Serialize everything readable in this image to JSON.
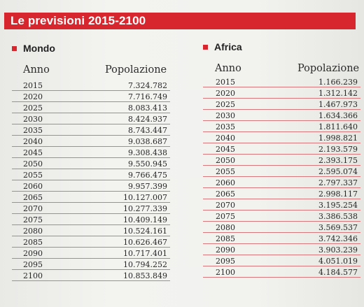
{
  "title": "Le previsioni 2015-2100",
  "mondo": {
    "name": "Mondo",
    "col_year": "Anno",
    "col_pop": "Popolazione",
    "rows": [
      {
        "year": "2015",
        "pop": "7.324.782"
      },
      {
        "year": "2020",
        "pop": "7.716.749"
      },
      {
        "year": "2025",
        "pop": "8.083.413"
      },
      {
        "year": "2030",
        "pop": "8.424.937"
      },
      {
        "year": "2035",
        "pop": "8.743.447"
      },
      {
        "year": "2040",
        "pop": "9.038.687"
      },
      {
        "year": "2045",
        "pop": "9.308.438"
      },
      {
        "year": "2050",
        "pop": "9.550.945"
      },
      {
        "year": "2055",
        "pop": "9.766.475"
      },
      {
        "year": "2060",
        "pop": "9.957.399"
      },
      {
        "year": "2065",
        "pop": "10.127.007"
      },
      {
        "year": "2070",
        "pop": "10.277.339"
      },
      {
        "year": "2075",
        "pop": "10.409.149"
      },
      {
        "year": "2080",
        "pop": "10.524.161"
      },
      {
        "year": "2085",
        "pop": "10.626.467"
      },
      {
        "year": "2090",
        "pop": "10.717.401"
      },
      {
        "year": "2095",
        "pop": "10.794.252"
      },
      {
        "year": "2100",
        "pop": "10.853.849"
      }
    ]
  },
  "africa": {
    "name": "Africa",
    "col_year": "Anno",
    "col_pop": "Popolazione",
    "rows": [
      {
        "year": "2015",
        "pop": "1.166.239"
      },
      {
        "year": "2020",
        "pop": "1.312.142"
      },
      {
        "year": "2025",
        "pop": "1.467.973"
      },
      {
        "year": "2030",
        "pop": "1.634.366"
      },
      {
        "year": "2035",
        "pop": "1.811.640"
      },
      {
        "year": "2040",
        "pop": "1.998.821"
      },
      {
        "year": "2045",
        "pop": "2.193.579"
      },
      {
        "year": "2050",
        "pop": "2.393.175"
      },
      {
        "year": "2055",
        "pop": "2.595.074"
      },
      {
        "year": "2060",
        "pop": "2.797.337"
      },
      {
        "year": "2065",
        "pop": "2.998.117"
      },
      {
        "year": "2070",
        "pop": "3.195.254"
      },
      {
        "year": "2075",
        "pop": "3.386.538"
      },
      {
        "year": "2080",
        "pop": "3.569.537"
      },
      {
        "year": "2085",
        "pop": "3.742.346"
      },
      {
        "year": "2090",
        "pop": "3.903.239"
      },
      {
        "year": "2095",
        "pop": "4.051.019"
      },
      {
        "year": "2100",
        "pop": "4.184.577"
      }
    ]
  },
  "colors": {
    "accent": "#d8262e",
    "rule": "#d8777b"
  }
}
